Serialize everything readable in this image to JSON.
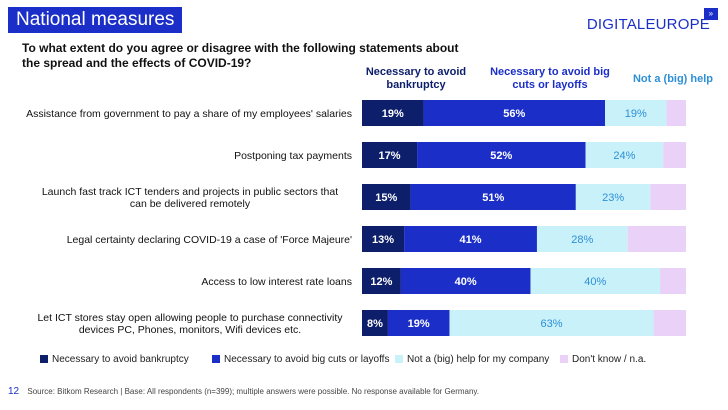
{
  "header": {
    "title": "National measures",
    "logo": "DIGITALEUROPE",
    "logo_mark": "»",
    "question": "To what extent do you agree or disagree with the following statements about the spread and the effects of COVID-19?"
  },
  "column_heads": [
    "Necessary to avoid bankruptcy",
    "Necessary to avoid big cuts or layoffs",
    "Not a (big) help"
  ],
  "colors": {
    "dark_navy": "#0d1e6b",
    "blue": "#1b2fc8",
    "light_cyan": "#c9f1f9",
    "lilac": "#ead1f7",
    "brand": "#1b2fc8"
  },
  "chart_data": {
    "type": "bar",
    "orientation": "horizontal",
    "stacked": true,
    "xlim": [
      0,
      100
    ],
    "grid": false,
    "legend_position": "bottom",
    "categories": [
      "Assistance from government to pay a share of my employees' salaries",
      "Postponing tax payments",
      "Launch fast track ICT tenders and projects in public sectors that can be delivered remotely",
      "Legal certainty declaring COVID-19 a case of 'Force Majeure'",
      "Access to low interest rate loans",
      "Let ICT stores stay open allowing people to purchase connectivity devices PC, Phones, monitors, Wifi devices etc."
    ],
    "series": [
      {
        "name": "Necessary to avoid bankruptcy",
        "color": "#0d1e6b",
        "values": [
          19,
          17,
          15,
          13,
          12,
          8
        ]
      },
      {
        "name": "Necessary to avoid big cuts or layoffs",
        "color": "#1b2fc8",
        "values": [
          56,
          52,
          51,
          41,
          40,
          19
        ]
      },
      {
        "name": "Not a (big) help for my company",
        "color": "#c9f1f9",
        "values": [
          19,
          24,
          23,
          28,
          40,
          63
        ]
      },
      {
        "name": "Don't know / n.a.",
        "color": "#ead1f7",
        "values": [
          6,
          7,
          11,
          18,
          8,
          10
        ]
      }
    ],
    "data_labels": [
      [
        "19%",
        "56%",
        "19%",
        ""
      ],
      [
        "17%",
        "52%",
        "24%",
        ""
      ],
      [
        "15%",
        "51%",
        "23%",
        ""
      ],
      [
        "13%",
        "41%",
        "28%",
        ""
      ],
      [
        "12%",
        "40%",
        "40%",
        ""
      ],
      [
        "8%",
        "19%",
        "63%",
        ""
      ]
    ]
  },
  "footer": {
    "page_number": "12",
    "source": "Source: Bitkom Research | Base: All respondents (n=399); multiple answers were possible. No response available for Germany."
  }
}
